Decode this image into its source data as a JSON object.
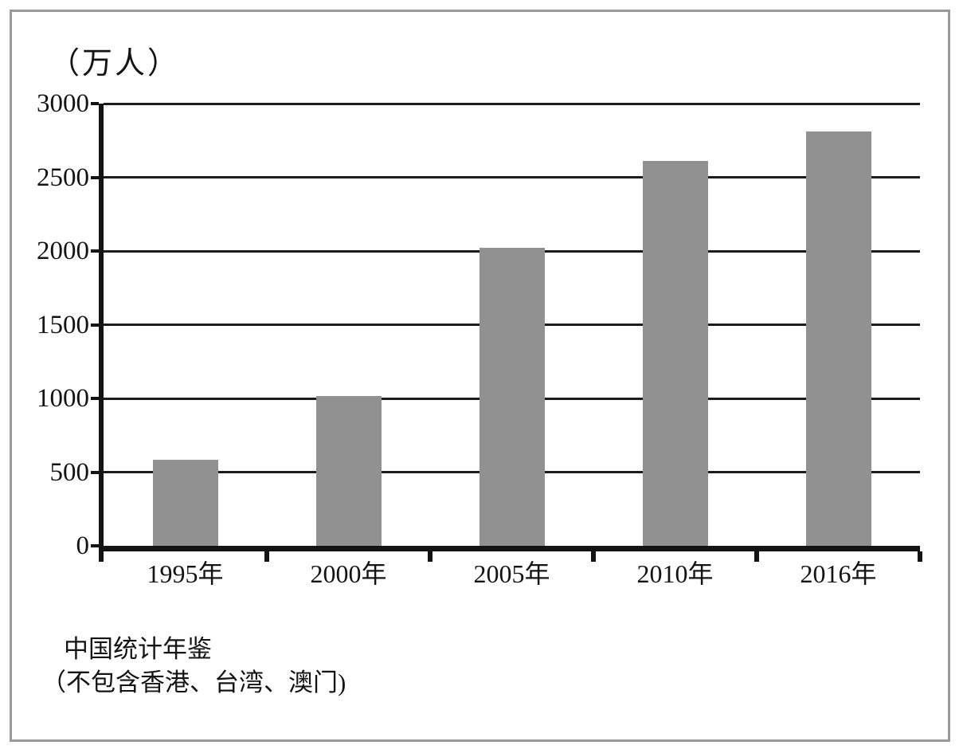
{
  "chart_data": {
    "type": "bar",
    "title": "",
    "unit_label": "（万人）",
    "categories": [
      "1995年",
      "2000年",
      "2005年",
      "2010年",
      "2016年"
    ],
    "values": [
      585,
      1015,
      2020,
      2610,
      2810
    ],
    "xlabel": "",
    "ylabel": "（万人）",
    "ylim": [
      0,
      3000
    ],
    "yticks": [
      0,
      500,
      1000,
      1500,
      2000,
      2500,
      3000
    ],
    "grid": "horizontal",
    "legend": "none",
    "bar_color": "#919191",
    "gridline_color": "#1c1c1c",
    "axis_color": "#141414",
    "frame_color": "#9a9a9a",
    "source_line1": "中国统计年鉴",
    "source_line2": "（不包含香港、台湾、澳门)"
  }
}
